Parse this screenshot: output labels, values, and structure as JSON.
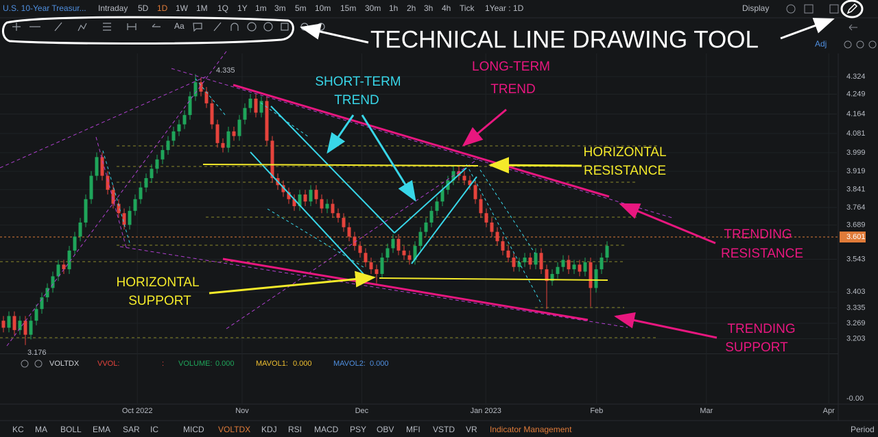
{
  "toolbar": {
    "symbol": "U.S. 10-Year Treasur...",
    "intervals": [
      "Intraday",
      "5D",
      "1D",
      "1W",
      "1M",
      "1Q",
      "1Y",
      "1m",
      "3m",
      "5m",
      "10m",
      "15m",
      "30m",
      "1h",
      "2h",
      "3h",
      "4h",
      "Tick"
    ],
    "range": "1Year : 1D",
    "display": "Display",
    "adj": "Adj"
  },
  "annotations": {
    "tool": "TECHNICAL LINE DRAWING TOOL",
    "short_term": [
      "SHORT-TERM",
      "TREND"
    ],
    "long_term": [
      "LONG-TERM",
      "TREND"
    ],
    "horizontal_resistance": [
      "HORIZONTAL",
      "RESISTANCE"
    ],
    "trending_resistance": [
      "TRENDING",
      "RESISTANCE"
    ],
    "horizontal_support": [
      "HORIZONTAL",
      "SUPPORT"
    ],
    "trending_support": [
      "TRENDING",
      "SUPPORT"
    ]
  },
  "chart_data": {
    "type": "candlestick",
    "up_color": "#1fa55a",
    "down_color": "#e5433c",
    "high_label": "4.335",
    "low_label": "3.176",
    "last_price_label": "3.601",
    "ylim": [
      3.14,
      4.4
    ],
    "yticks": [
      4.324,
      4.249,
      4.164,
      4.081,
      3.999,
      3.919,
      3.841,
      3.764,
      3.689,
      3.543,
      3.403,
      3.335,
      3.269,
      3.203
    ],
    "xlim": [
      -0.625,
      151.875
    ],
    "xticks": [
      {
        "value": 24.4,
        "label": "Oct 2022"
      },
      {
        "value": 43.5,
        "label": "Nov"
      },
      {
        "value": 65.3,
        "label": "Dec"
      },
      {
        "value": 87.9,
        "label": "Jan 2023"
      },
      {
        "value": 108.1,
        "label": "Feb"
      },
      {
        "value": 128.1,
        "label": "Mar"
      },
      {
        "value": 150.4,
        "label": "Apr"
      }
    ],
    "candles": [
      [
        3.28,
        3.3,
        3.23,
        3.25
      ],
      [
        3.25,
        3.32,
        3.23,
        3.3
      ],
      [
        3.3,
        3.32,
        3.22,
        3.24
      ],
      [
        3.24,
        3.3,
        3.22,
        3.28
      ],
      [
        3.28,
        3.3,
        3.176,
        3.22
      ],
      [
        3.22,
        3.3,
        3.2,
        3.28
      ],
      [
        3.28,
        3.35,
        3.26,
        3.33
      ],
      [
        3.33,
        3.4,
        3.31,
        3.38
      ],
      [
        3.38,
        3.44,
        3.36,
        3.42
      ],
      [
        3.42,
        3.49,
        3.4,
        3.47
      ],
      [
        3.47,
        3.54,
        3.45,
        3.52
      ],
      [
        3.52,
        3.54,
        3.48,
        3.5
      ],
      [
        3.5,
        3.6,
        3.48,
        3.58
      ],
      [
        3.58,
        3.66,
        3.56,
        3.64
      ],
      [
        3.64,
        3.72,
        3.62,
        3.7
      ],
      [
        3.7,
        3.82,
        3.68,
        3.8
      ],
      [
        3.8,
        3.92,
        3.78,
        3.9
      ],
      [
        3.9,
        4.0,
        3.88,
        3.98
      ],
      [
        3.98,
        4.0,
        3.88,
        3.9
      ],
      [
        3.9,
        3.92,
        3.82,
        3.84
      ],
      [
        3.84,
        3.86,
        3.76,
        3.78
      ],
      [
        3.78,
        3.8,
        3.72,
        3.74
      ],
      [
        3.74,
        3.76,
        3.67,
        3.69
      ],
      [
        3.69,
        3.77,
        3.67,
        3.75
      ],
      [
        3.75,
        3.82,
        3.73,
        3.8
      ],
      [
        3.8,
        3.87,
        3.78,
        3.85
      ],
      [
        3.85,
        3.91,
        3.83,
        3.89
      ],
      [
        3.89,
        3.95,
        3.87,
        3.93
      ],
      [
        3.93,
        3.99,
        3.91,
        3.97
      ],
      [
        3.97,
        4.03,
        3.95,
        4.01
      ],
      [
        4.01,
        4.07,
        3.99,
        4.05
      ],
      [
        4.05,
        4.11,
        4.03,
        4.09
      ],
      [
        4.09,
        4.14,
        4.07,
        4.12
      ],
      [
        4.12,
        4.18,
        4.1,
        4.16
      ],
      [
        4.16,
        4.26,
        4.14,
        4.24
      ],
      [
        4.24,
        4.335,
        4.22,
        4.3
      ],
      [
        4.3,
        4.32,
        4.24,
        4.26
      ],
      [
        4.26,
        4.28,
        4.19,
        4.21
      ],
      [
        4.21,
        4.23,
        4.1,
        4.12
      ],
      [
        4.12,
        4.14,
        4.02,
        4.04
      ],
      [
        4.04,
        4.06,
        4.0,
        4.02
      ],
      [
        4.02,
        4.11,
        4.0,
        4.09
      ],
      [
        4.09,
        4.11,
        4.05,
        4.07
      ],
      [
        4.07,
        4.16,
        4.05,
        4.14
      ],
      [
        4.14,
        4.21,
        4.12,
        4.19
      ],
      [
        4.19,
        4.25,
        4.17,
        4.23
      ],
      [
        4.23,
        4.25,
        4.15,
        4.17
      ],
      [
        4.17,
        4.24,
        4.15,
        4.22
      ],
      [
        4.22,
        4.24,
        4.03,
        4.05
      ],
      [
        4.05,
        4.07,
        3.87,
        3.89
      ],
      [
        3.89,
        3.91,
        3.84,
        3.86
      ],
      [
        3.86,
        3.88,
        3.81,
        3.83
      ],
      [
        3.83,
        3.85,
        3.78,
        3.8
      ],
      [
        3.8,
        3.82,
        3.75,
        3.77
      ],
      [
        3.77,
        3.84,
        3.75,
        3.82
      ],
      [
        3.82,
        3.84,
        3.77,
        3.79
      ],
      [
        3.79,
        3.86,
        3.77,
        3.84
      ],
      [
        3.84,
        3.86,
        3.78,
        3.8
      ],
      [
        3.8,
        3.82,
        3.74,
        3.76
      ],
      [
        3.76,
        3.8,
        3.74,
        3.78
      ],
      [
        3.78,
        3.8,
        3.72,
        3.74
      ],
      [
        3.74,
        3.76,
        3.7,
        3.72
      ],
      [
        3.72,
        3.74,
        3.66,
        3.68
      ],
      [
        3.68,
        3.7,
        3.62,
        3.64
      ],
      [
        3.64,
        3.66,
        3.58,
        3.6
      ],
      [
        3.6,
        3.62,
        3.55,
        3.57
      ],
      [
        3.57,
        3.59,
        3.51,
        3.53
      ],
      [
        3.53,
        3.55,
        3.48,
        3.5
      ],
      [
        3.5,
        3.52,
        3.44,
        3.48
      ],
      [
        3.48,
        3.57,
        3.46,
        3.55
      ],
      [
        3.55,
        3.61,
        3.53,
        3.59
      ],
      [
        3.59,
        3.65,
        3.57,
        3.63
      ],
      [
        3.63,
        3.65,
        3.56,
        3.58
      ],
      [
        3.58,
        3.6,
        3.54,
        3.56
      ],
      [
        3.56,
        3.58,
        3.52,
        3.54
      ],
      [
        3.54,
        3.62,
        3.52,
        3.6
      ],
      [
        3.6,
        3.68,
        3.58,
        3.66
      ],
      [
        3.66,
        3.72,
        3.64,
        3.7
      ],
      [
        3.7,
        3.77,
        3.68,
        3.75
      ],
      [
        3.75,
        3.81,
        3.73,
        3.79
      ],
      [
        3.79,
        3.86,
        3.77,
        3.84
      ],
      [
        3.84,
        3.9,
        3.82,
        3.88
      ],
      [
        3.88,
        3.94,
        3.86,
        3.92
      ],
      [
        3.92,
        3.94,
        3.88,
        3.9
      ],
      [
        3.9,
        3.92,
        3.86,
        3.88
      ],
      [
        3.88,
        3.9,
        3.84,
        3.86
      ],
      [
        3.86,
        3.88,
        3.78,
        3.8
      ],
      [
        3.8,
        3.82,
        3.72,
        3.74
      ],
      [
        3.74,
        3.76,
        3.68,
        3.7
      ],
      [
        3.7,
        3.72,
        3.64,
        3.66
      ],
      [
        3.66,
        3.68,
        3.6,
        3.62
      ],
      [
        3.62,
        3.64,
        3.56,
        3.58
      ],
      [
        3.58,
        3.6,
        3.53,
        3.55
      ],
      [
        3.55,
        3.57,
        3.49,
        3.51
      ],
      [
        3.51,
        3.55,
        3.49,
        3.53
      ],
      [
        3.53,
        3.57,
        3.51,
        3.55
      ],
      [
        3.55,
        3.57,
        3.5,
        3.52
      ],
      [
        3.52,
        3.59,
        3.5,
        3.57
      ],
      [
        3.57,
        3.59,
        3.48,
        3.5
      ],
      [
        3.5,
        3.52,
        3.33,
        3.45
      ],
      [
        3.45,
        3.5,
        3.43,
        3.48
      ],
      [
        3.48,
        3.53,
        3.46,
        3.51
      ],
      [
        3.51,
        3.56,
        3.49,
        3.54
      ],
      [
        3.54,
        3.56,
        3.48,
        3.5
      ],
      [
        3.5,
        3.54,
        3.48,
        3.52
      ],
      [
        3.52,
        3.54,
        3.47,
        3.49
      ],
      [
        3.49,
        3.55,
        3.47,
        3.53
      ],
      [
        3.53,
        3.55,
        3.34,
        3.42
      ],
      [
        3.42,
        3.52,
        3.4,
        3.5
      ],
      [
        3.5,
        3.57,
        3.48,
        3.55
      ],
      [
        3.55,
        3.62,
        3.53,
        3.6
      ]
    ]
  },
  "indicator_bar": {
    "name": "VOLTDX",
    "vvol": "VVOL:",
    "sep": ":",
    "volume": "VOLUME:",
    "volume_value": "0.000",
    "mavol1": "MAVOL1:",
    "mavol1_value": "0.000",
    "mavol2": "MAVOL2:",
    "mavol2_value": "0.000",
    "axis_label": "-0.00"
  },
  "indicator_tabs": [
    "KC",
    "MA",
    "BOLL",
    "EMA",
    "SAR",
    "IC",
    "MICD",
    "VOLTDX",
    "KDJ",
    "RSI",
    "MACD",
    "PSY",
    "OBV",
    "MFI",
    "VSTD",
    "VR",
    "Indicator Management"
  ],
  "period": "Period"
}
